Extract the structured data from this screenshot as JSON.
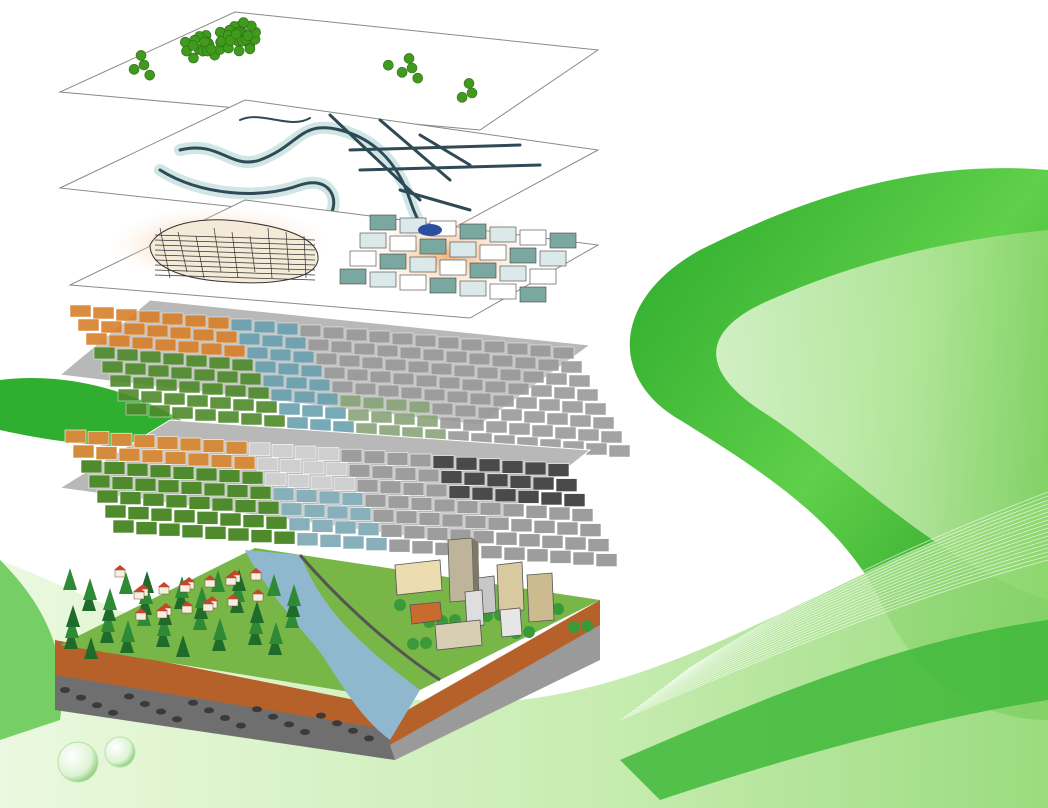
{
  "figure": {
    "description_label": "",
    "layer_order": [
      "points",
      "lines",
      "polygons",
      "raster-surface",
      "raster-grid",
      "terrain-block"
    ],
    "colors": {
      "background": "#ffffff",
      "ribbon_dark": "#1fa01f",
      "ribbon_mid": "#4cc23c",
      "ribbon_light": "#bfe9a6",
      "point_green": "#3f9a1d",
      "road_dark": "#2f4a55",
      "road_halo": "#cfe6e4",
      "parcel_fill": "#f4ead8",
      "zone_orange": "#f1b27a",
      "raster_orange": "#d8802a",
      "raster_green": "#4f8a2c",
      "raster_gray": "#9a9a9a",
      "river_blue": "#8fb8cf",
      "soil_brown": "#b7612a",
      "rock_gray": "#6f6f6f"
    }
  }
}
